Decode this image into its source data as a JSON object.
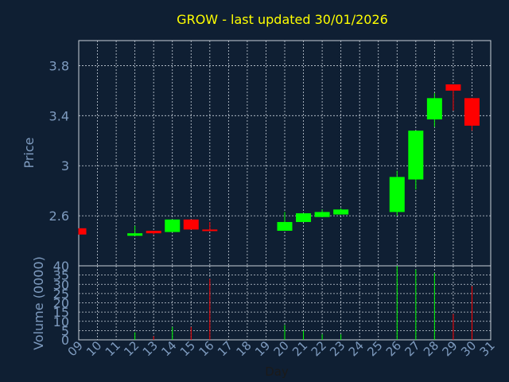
{
  "chart_data": {
    "type": "candlestick",
    "title": "GROW - last updated 30/01/2026",
    "xlabel": "Day",
    "price_ylabel": "Price",
    "volume_ylabel": "Volume (0000)",
    "x_ticks": [
      "09",
      "10",
      "11",
      "12",
      "13",
      "14",
      "15",
      "16",
      "17",
      "18",
      "19",
      "20",
      "21",
      "22",
      "23",
      "24",
      "25",
      "26",
      "27",
      "28",
      "29",
      "30",
      "31"
    ],
    "price_ticks": [
      "2.6",
      "3",
      "3.4",
      "3.8"
    ],
    "price_tick_values": [
      2.6,
      3.0,
      3.4,
      3.8
    ],
    "volume_ticks": [
      "0",
      "5",
      "10",
      "15",
      "20",
      "25",
      "30",
      "35",
      "40"
    ],
    "volume_tick_values": [
      0,
      5,
      10,
      15,
      20,
      25,
      30,
      35,
      40
    ],
    "price_ylim": [
      2.2,
      4.0
    ],
    "volume_ylim": [
      0,
      40
    ],
    "xlim": [
      9,
      31
    ],
    "grid": true,
    "colors": {
      "background": "#0f1f33",
      "grid": "#c8d0da",
      "axis_text": "#7e9bbf",
      "title": "#ffff00",
      "up": "#00ff00",
      "down": "#ff0000"
    },
    "candles": [
      {
        "day": 9,
        "open": 2.5,
        "high": 2.5,
        "low": 2.45,
        "close": 2.45,
        "volume": 0
      },
      {
        "day": 12,
        "open": 2.44,
        "high": 2.52,
        "low": 2.44,
        "close": 2.46,
        "volume": 4
      },
      {
        "day": 13,
        "open": 2.48,
        "high": 2.48,
        "low": 2.45,
        "close": 2.46,
        "volume": 2
      },
      {
        "day": 14,
        "open": 2.47,
        "high": 2.57,
        "low": 2.47,
        "close": 2.57,
        "volume": 7
      },
      {
        "day": 15,
        "open": 2.57,
        "high": 2.57,
        "low": 2.49,
        "close": 2.49,
        "volume": 7
      },
      {
        "day": 16,
        "open": 2.49,
        "high": 2.55,
        "low": 2.48,
        "close": 2.48,
        "volume": 33
      },
      {
        "day": 20,
        "open": 2.48,
        "high": 2.63,
        "low": 2.48,
        "close": 2.55,
        "volume": 8
      },
      {
        "day": 21,
        "open": 2.55,
        "high": 2.62,
        "low": 2.55,
        "close": 2.62,
        "volume": 5
      },
      {
        "day": 22,
        "open": 2.59,
        "high": 2.65,
        "low": 2.59,
        "close": 2.63,
        "volume": 3
      },
      {
        "day": 23,
        "open": 2.61,
        "high": 2.66,
        "low": 2.61,
        "close": 2.65,
        "volume": 3
      },
      {
        "day": 26,
        "open": 2.63,
        "high": 2.96,
        "low": 2.6,
        "close": 2.91,
        "volume": 40
      },
      {
        "day": 27,
        "open": 2.89,
        "high": 3.28,
        "low": 2.81,
        "close": 3.28,
        "volume": 38
      },
      {
        "day": 28,
        "open": 3.37,
        "high": 3.58,
        "low": 3.31,
        "close": 3.54,
        "volume": 36
      },
      {
        "day": 29,
        "open": 3.65,
        "high": 3.65,
        "low": 3.44,
        "close": 3.6,
        "volume": 14
      },
      {
        "day": 30,
        "open": 3.54,
        "high": 3.54,
        "low": 3.28,
        "close": 3.32,
        "volume": 29
      }
    ]
  }
}
